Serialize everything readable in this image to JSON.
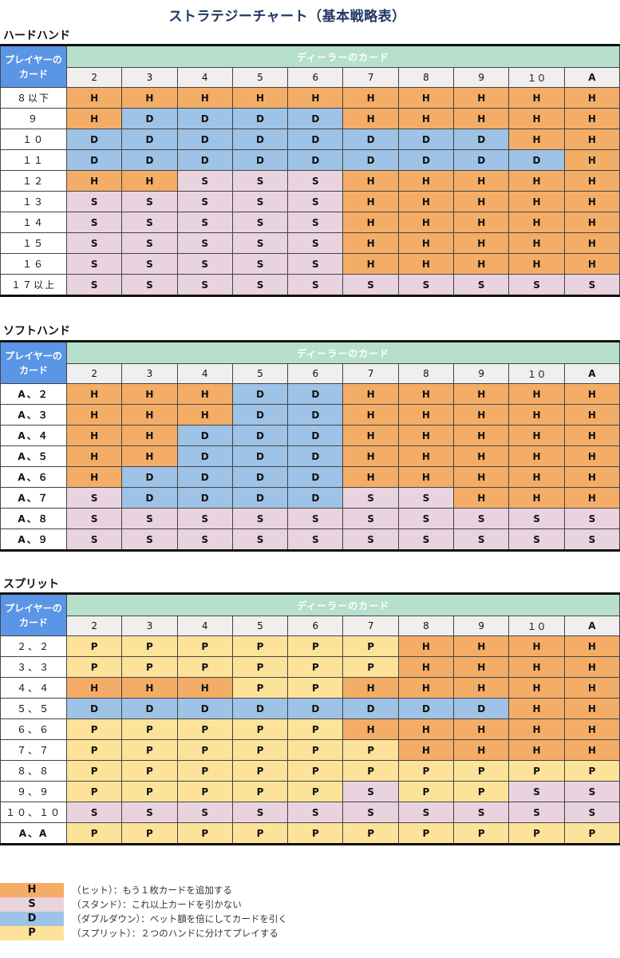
{
  "title": "ストラテジーチャート（基本戦略表）",
  "colors": {
    "H": "#f4ad66",
    "S": "#e8d3df",
    "D": "#9ec3e6",
    "P": "#fde39a",
    "corner": "#5b95e6",
    "dealer_header": "#b6e0cc",
    "title": "#1f3864"
  },
  "corner_label": "プレイヤーのカード",
  "dealer_label": "ディーラーのカード",
  "dealer_columns": [
    "2",
    "3",
    "4",
    "5",
    "6",
    "7",
    "8",
    "9",
    "１０",
    "A"
  ],
  "sections": [
    {
      "title": "ハードハンド",
      "rows": [
        {
          "label": "８以下",
          "cells": [
            "H",
            "H",
            "H",
            "H",
            "H",
            "H",
            "H",
            "H",
            "H",
            "H"
          ]
        },
        {
          "label": "９",
          "cells": [
            "H",
            "D",
            "D",
            "D",
            "D",
            "H",
            "H",
            "H",
            "H",
            "H"
          ]
        },
        {
          "label": "１０",
          "cells": [
            "D",
            "D",
            "D",
            "D",
            "D",
            "D",
            "D",
            "D",
            "H",
            "H"
          ]
        },
        {
          "label": "１１",
          "cells": [
            "D",
            "D",
            "D",
            "D",
            "D",
            "D",
            "D",
            "D",
            "D",
            "H"
          ]
        },
        {
          "label": "１２",
          "cells": [
            "H",
            "H",
            "S",
            "S",
            "S",
            "H",
            "H",
            "H",
            "H",
            "H"
          ]
        },
        {
          "label": "１３",
          "cells": [
            "S",
            "S",
            "S",
            "S",
            "S",
            "H",
            "H",
            "H",
            "H",
            "H"
          ]
        },
        {
          "label": "１４",
          "cells": [
            "S",
            "S",
            "S",
            "S",
            "S",
            "H",
            "H",
            "H",
            "H",
            "H"
          ]
        },
        {
          "label": "１５",
          "cells": [
            "S",
            "S",
            "S",
            "S",
            "S",
            "H",
            "H",
            "H",
            "H",
            "H"
          ]
        },
        {
          "label": "１６",
          "cells": [
            "S",
            "S",
            "S",
            "S",
            "S",
            "H",
            "H",
            "H",
            "H",
            "H"
          ]
        },
        {
          "label": "１７以上",
          "cells": [
            "S",
            "S",
            "S",
            "S",
            "S",
            "S",
            "S",
            "S",
            "S",
            "S"
          ]
        }
      ]
    },
    {
      "title": "ソフトハンド",
      "rows": [
        {
          "label": "A、２",
          "cells": [
            "H",
            "H",
            "H",
            "D",
            "D",
            "H",
            "H",
            "H",
            "H",
            "H"
          ]
        },
        {
          "label": "A、３",
          "cells": [
            "H",
            "H",
            "H",
            "D",
            "D",
            "H",
            "H",
            "H",
            "H",
            "H"
          ]
        },
        {
          "label": "A、４",
          "cells": [
            "H",
            "H",
            "D",
            "D",
            "D",
            "H",
            "H",
            "H",
            "H",
            "H"
          ]
        },
        {
          "label": "A、５",
          "cells": [
            "H",
            "H",
            "D",
            "D",
            "D",
            "H",
            "H",
            "H",
            "H",
            "H"
          ]
        },
        {
          "label": "A、６",
          "cells": [
            "H",
            "D",
            "D",
            "D",
            "D",
            "H",
            "H",
            "H",
            "H",
            "H"
          ]
        },
        {
          "label": "A、７",
          "cells": [
            "S",
            "D",
            "D",
            "D",
            "D",
            "S",
            "S",
            "H",
            "H",
            "H"
          ]
        },
        {
          "label": "A、８",
          "cells": [
            "S",
            "S",
            "S",
            "S",
            "S",
            "S",
            "S",
            "S",
            "S",
            "S"
          ]
        },
        {
          "label": "A、９",
          "cells": [
            "S",
            "S",
            "S",
            "S",
            "S",
            "S",
            "S",
            "S",
            "S",
            "S"
          ]
        }
      ]
    },
    {
      "title": "スプリット",
      "rows": [
        {
          "label": "２、２",
          "cells": [
            "P",
            "P",
            "P",
            "P",
            "P",
            "P",
            "H",
            "H",
            "H",
            "H"
          ]
        },
        {
          "label": "３、３",
          "cells": [
            "P",
            "P",
            "P",
            "P",
            "P",
            "P",
            "H",
            "H",
            "H",
            "H"
          ]
        },
        {
          "label": "４、４",
          "cells": [
            "H",
            "H",
            "H",
            "P",
            "P",
            "H",
            "H",
            "H",
            "H",
            "H"
          ]
        },
        {
          "label": "５、５",
          "cells": [
            "D",
            "D",
            "D",
            "D",
            "D",
            "D",
            "D",
            "D",
            "H",
            "H"
          ]
        },
        {
          "label": "６、６",
          "cells": [
            "P",
            "P",
            "P",
            "P",
            "P",
            "H",
            "H",
            "H",
            "H",
            "H"
          ]
        },
        {
          "label": "７、７",
          "cells": [
            "P",
            "P",
            "P",
            "P",
            "P",
            "P",
            "H",
            "H",
            "H",
            "H"
          ]
        },
        {
          "label": "８、８",
          "cells": [
            "P",
            "P",
            "P",
            "P",
            "P",
            "P",
            "P",
            "P",
            "P",
            "P"
          ]
        },
        {
          "label": "９、９",
          "cells": [
            "P",
            "P",
            "P",
            "P",
            "P",
            "S",
            "P",
            "P",
            "S",
            "S"
          ]
        },
        {
          "label": "１０、１０",
          "cells": [
            "S",
            "S",
            "S",
            "S",
            "S",
            "S",
            "S",
            "S",
            "S",
            "S"
          ]
        },
        {
          "label": "A、A",
          "cells": [
            "P",
            "P",
            "P",
            "P",
            "P",
            "P",
            "P",
            "P",
            "P",
            "P"
          ]
        }
      ]
    }
  ],
  "legend": [
    {
      "key": "H",
      "text": "（ヒット）：もう１枚カードを追加する"
    },
    {
      "key": "S",
      "text": "（スタンド）：これ以上カードを引かない"
    },
    {
      "key": "D",
      "text": "（ダブルダウン）：ベット額を倍にしてカードを引く"
    },
    {
      "key": "P",
      "text": "（スプリット）：２つのハンドに分けてプレイする"
    }
  ]
}
